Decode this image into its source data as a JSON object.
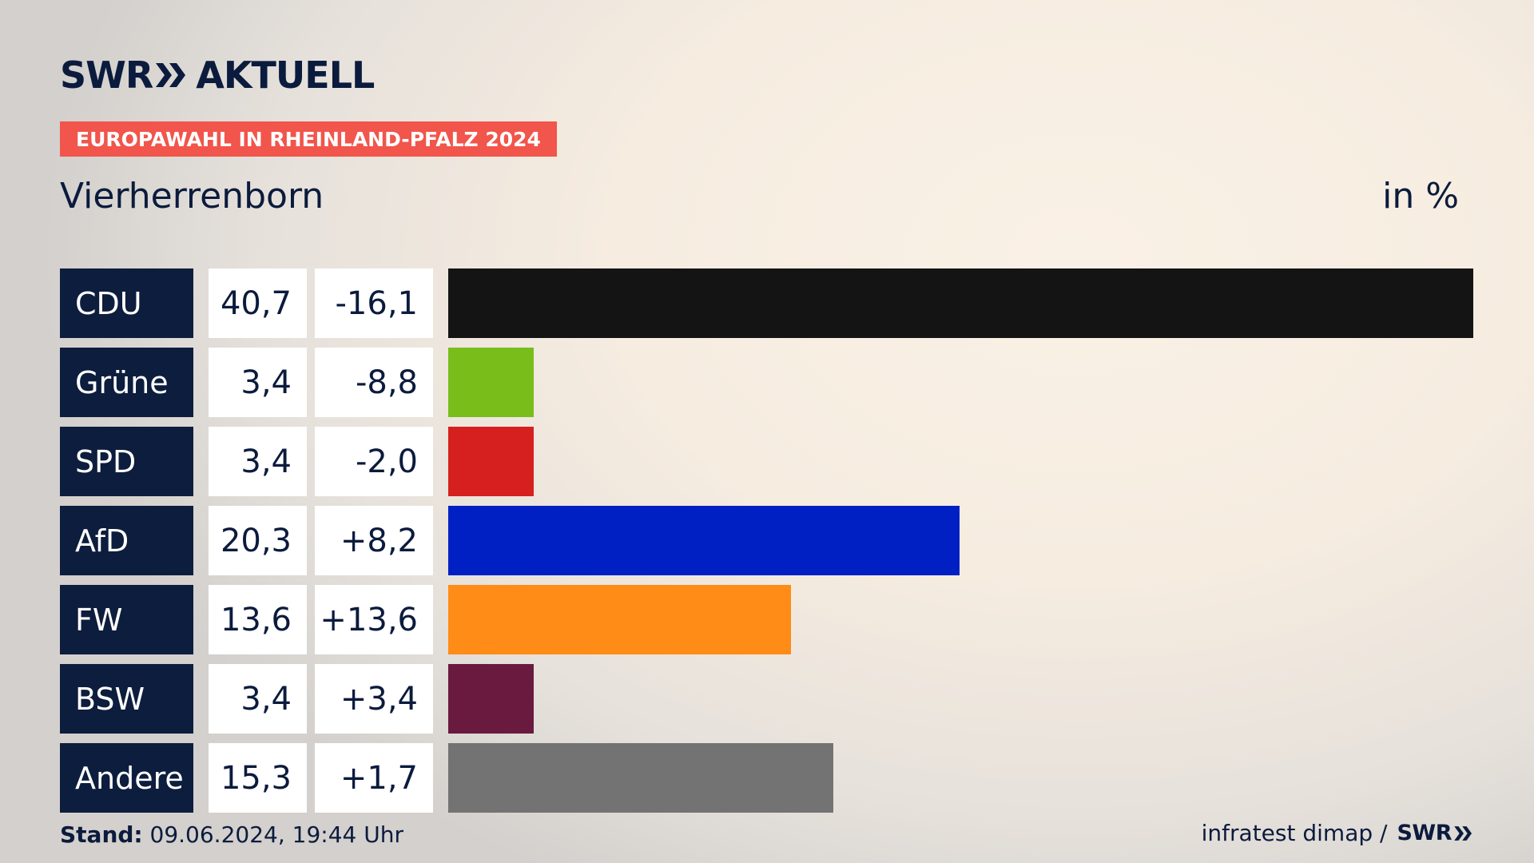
{
  "header": {
    "logo_left": "SWR",
    "logo_right": "AKTUELL",
    "tag": "EUROPAWAHL IN RHEINLAND-PFALZ 2024",
    "title": "Vierherrenborn",
    "unit": "in %"
  },
  "chart_data": {
    "type": "bar",
    "orientation": "horizontal",
    "title": "Vierherrenborn",
    "unit": "in %",
    "categories": [
      "CDU",
      "Grüne",
      "SPD",
      "AfD",
      "FW",
      "BSW",
      "Andere"
    ],
    "series": [
      {
        "name": "",
        "values": [
          40.7,
          3.4,
          3.4,
          20.3,
          13.6,
          3.4,
          15.3
        ]
      }
    ],
    "rows": [
      {
        "party": "CDU",
        "result": "40,7",
        "diff": "-16,1",
        "value": 40.7,
        "color": "#141414"
      },
      {
        "party": "Grüne",
        "result": "3,4",
        "diff": "-8,8",
        "value": 3.4,
        "color": "#79bd1b"
      },
      {
        "party": "SPD",
        "result": "3,4",
        "diff": "-2,0",
        "value": 3.4,
        "color": "#d61f1f"
      },
      {
        "party": "AfD",
        "result": "20,3",
        "diff": "+8,2",
        "value": 20.3,
        "color": "#0020c4"
      },
      {
        "party": "FW",
        "result": "13,6",
        "diff": "+13,6",
        "value": 13.6,
        "color": "#ff8c17"
      },
      {
        "party": "BSW",
        "result": "3,4",
        "diff": "+3,4",
        "value": 3.4,
        "color": "#6a1a3e"
      },
      {
        "party": "Andere",
        "result": "15,3",
        "diff": "+1,7",
        "value": 15.3,
        "color": "#737373"
      }
    ],
    "xlim": [
      0,
      40.7
    ],
    "grid": false,
    "legend": "none"
  },
  "footer": {
    "stand_label": "Stand:",
    "stand_value": " 09.06.2024, 19:44 Uhr",
    "source": "infratest dimap /",
    "source_logo": "SWR"
  }
}
